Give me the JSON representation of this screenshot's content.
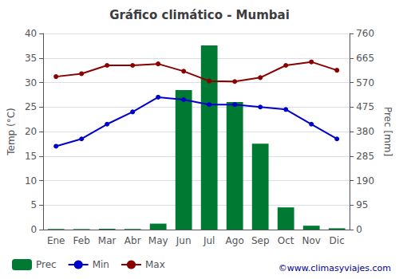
{
  "chart_data": {
    "type": "bar",
    "title": "Gráfico climático - Mumbai",
    "categories": [
      "Ene",
      "Feb",
      "Mar",
      "Abr",
      "May",
      "Jun",
      "Jul",
      "Ago",
      "Sep",
      "Oct",
      "Nov",
      "Dic"
    ],
    "series": [
      {
        "name": "Prec",
        "type": "bar",
        "axis": "y2",
        "color": "#007A33",
        "values": [
          2,
          2,
          3,
          2,
          23,
          541,
          714,
          494,
          333,
          86,
          15,
          5
        ]
      },
      {
        "name": "Min",
        "type": "line",
        "color": "#0000CD",
        "marker": "circle",
        "values": [
          17.0,
          18.5,
          21.5,
          24.0,
          27.0,
          26.5,
          25.5,
          25.5,
          25.0,
          24.5,
          21.5,
          18.5
        ]
      },
      {
        "name": "Max",
        "type": "line",
        "color": "#8B0000",
        "marker": "circle",
        "values": [
          31.2,
          31.8,
          33.5,
          33.5,
          33.8,
          32.3,
          30.3,
          30.2,
          31.0,
          33.5,
          34.2,
          32.5
        ]
      }
    ],
    "ylabel": "Temp (°C)",
    "y2label": "Prec [mm]",
    "ylim": [
      0,
      40
    ],
    "yticks": [
      0,
      5,
      10,
      15,
      20,
      25,
      30,
      35,
      40
    ],
    "y2lim": [
      0,
      760
    ],
    "y2ticks": [
      0,
      95,
      190,
      285,
      380,
      475,
      570,
      665,
      760
    ],
    "grid": true,
    "legend": "bottom",
    "annotation": "©www.climasyviajes.com"
  }
}
